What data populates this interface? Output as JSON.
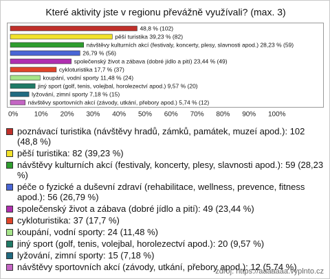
{
  "chart_data": {
    "type": "bar",
    "orientation": "horizontal",
    "title": "Které aktivity jste v regionu převážně využívali? (max. 3)",
    "values": [
      48.8,
      39.23,
      28.23,
      26.79,
      23.44,
      17.7,
      11.48,
      9.57,
      7.18,
      5.74
    ],
    "value_labels": [
      "48,8 % (102)",
      "pěší turistika 39,23 % (82)",
      "návštěvy kulturních akcí (festivaly, koncerty, plesy, slavnosti apod.) 28,23 % (59)",
      "26,79 % (56)",
      "společenský život a zábava (dobré jídlo a pití) 23,44 % (49)",
      "cykloturistika 17,7 % (37)",
      "koupání, vodní sporty 11,48 % (24)",
      "jiný sport (golf, tenis, volejbal, horolezectví apod.) 9,57 % (20)",
      "lyžování, zimní sporty 7,18 % (15)",
      "návštěvy sportovních akcí (závody, utkání, přebory apod.) 5,74 % (12)"
    ],
    "colors": [
      "#c0302a",
      "#f2e22a",
      "#2f9e2f",
      "#4a66d6",
      "#b02fb0",
      "#e0452a",
      "#a6e58a",
      "#1f7a66",
      "#206a80",
      "#c466c4"
    ],
    "legend": [
      "poznávací turistika (návštěvy hradů, zámků, památek, muzeí apod.): 102 (48,8 %)",
      "pěší turistika: 82 (39,23 %)",
      "návštěvy kulturních akcí (festivaly, koncerty, plesy, slavnosti apod.): 59 (28,23 %)",
      "péče o fyzické a duševní zdraví (rehabilitace, wellness, prevence, fitness apod.): 56 (26,79 %)",
      "společenský život a zábava (dobré jídlo a pití): 49 (23,44 %)",
      "cykloturistika: 37 (17,7 %)",
      "koupání, vodní sporty: 24 (11,48 %)",
      "jiný sport (golf, tenis, volejbal, horolezectví apod.): 20 (9,57 %)",
      "lyžování, zimní sporty: 15 (7,18 %)",
      "návštěvy sportovních akcí (závody, utkání, přebory apod.): 12 (5,74 %)"
    ],
    "xlim": [
      0,
      100
    ],
    "xticks": [
      {
        "value": 0,
        "label": "0%"
      },
      {
        "value": 10,
        "label": "10%"
      },
      {
        "value": 20,
        "label": "20%"
      },
      {
        "value": 30,
        "label": "30%"
      },
      {
        "value": 40,
        "label": "40%"
      },
      {
        "value": 50,
        "label": "50%"
      },
      {
        "value": 60,
        "label": "60%"
      },
      {
        "value": 70,
        "label": "70%"
      },
      {
        "value": 80,
        "label": "80%"
      },
      {
        "value": 90,
        "label": "90%"
      },
      {
        "value": 100,
        "label": "100%"
      }
    ],
    "grid": false,
    "source": "zdroj: https://aaaaaaa.vyplnto.cz"
  }
}
